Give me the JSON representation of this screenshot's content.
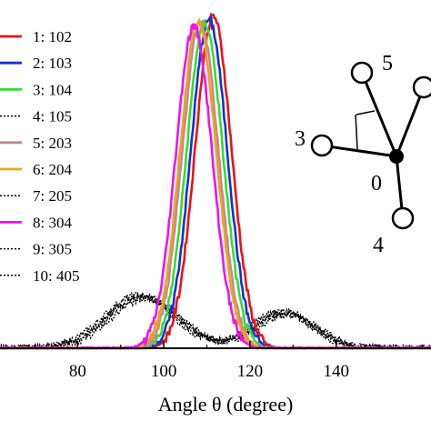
{
  "chart_data": {
    "type": "line",
    "title": "",
    "xlabel": "Angle θ (degree)",
    "ylabel": "",
    "xlim": [
      62,
      162
    ],
    "ylim": [
      0,
      1.0
    ],
    "x_ticks": [
      80,
      100,
      120,
      140
    ],
    "grid": false,
    "legend_position": "top-left",
    "series": [
      {
        "name": "1: 102",
        "color": "#ee1111",
        "style": "solid",
        "peak": 111.5,
        "sigma": 4.2,
        "amp": 1.0
      },
      {
        "name": "2: 103",
        "color": "#1133cc",
        "style": "solid",
        "peak": 110.5,
        "sigma": 4.2,
        "amp": 0.99
      },
      {
        "name": "3: 104",
        "color": "#33dd33",
        "style": "solid",
        "peak": 109.5,
        "sigma": 4.2,
        "amp": 0.98
      },
      {
        "name": "4: 105",
        "color": "#000000",
        "style": "dotted",
        "bimodal": [
          {
            "peak": 95,
            "sigma": 8,
            "amp": 0.16
          },
          {
            "peak": 128,
            "sigma": 7,
            "amp": 0.11
          }
        ]
      },
      {
        "name": "5: 203",
        "color": "#c08a8a",
        "style": "solid",
        "peak": 108.5,
        "sigma": 4.2,
        "amp": 0.98
      },
      {
        "name": "6: 204",
        "color": "#f0a020",
        "style": "solid",
        "peak": 108.0,
        "sigma": 4.2,
        "amp": 0.98
      },
      {
        "name": "7: 205",
        "color": "#000000",
        "style": "dotted",
        "bimodal": [
          {
            "peak": 96,
            "sigma": 8,
            "amp": 0.15
          },
          {
            "peak": 129,
            "sigma": 7,
            "amp": 0.1
          }
        ]
      },
      {
        "name": "8: 304",
        "color": "#ee11ee",
        "style": "solid",
        "peak": 107.0,
        "sigma": 4.2,
        "amp": 0.97
      },
      {
        "name": "9: 305",
        "color": "#000000",
        "style": "dotted",
        "bimodal": [
          {
            "peak": 94,
            "sigma": 8,
            "amp": 0.16
          },
          {
            "peak": 127,
            "sigma": 7,
            "amp": 0.11
          }
        ]
      },
      {
        "name": "10: 405",
        "color": "#000000",
        "style": "dotted",
        "bimodal": [
          {
            "peak": 95,
            "sigma": 8,
            "amp": 0.155
          },
          {
            "peak": 128,
            "sigma": 7,
            "amp": 0.105
          }
        ]
      }
    ]
  },
  "inset": {
    "labels": [
      "0",
      "3",
      "4",
      "5"
    ]
  }
}
